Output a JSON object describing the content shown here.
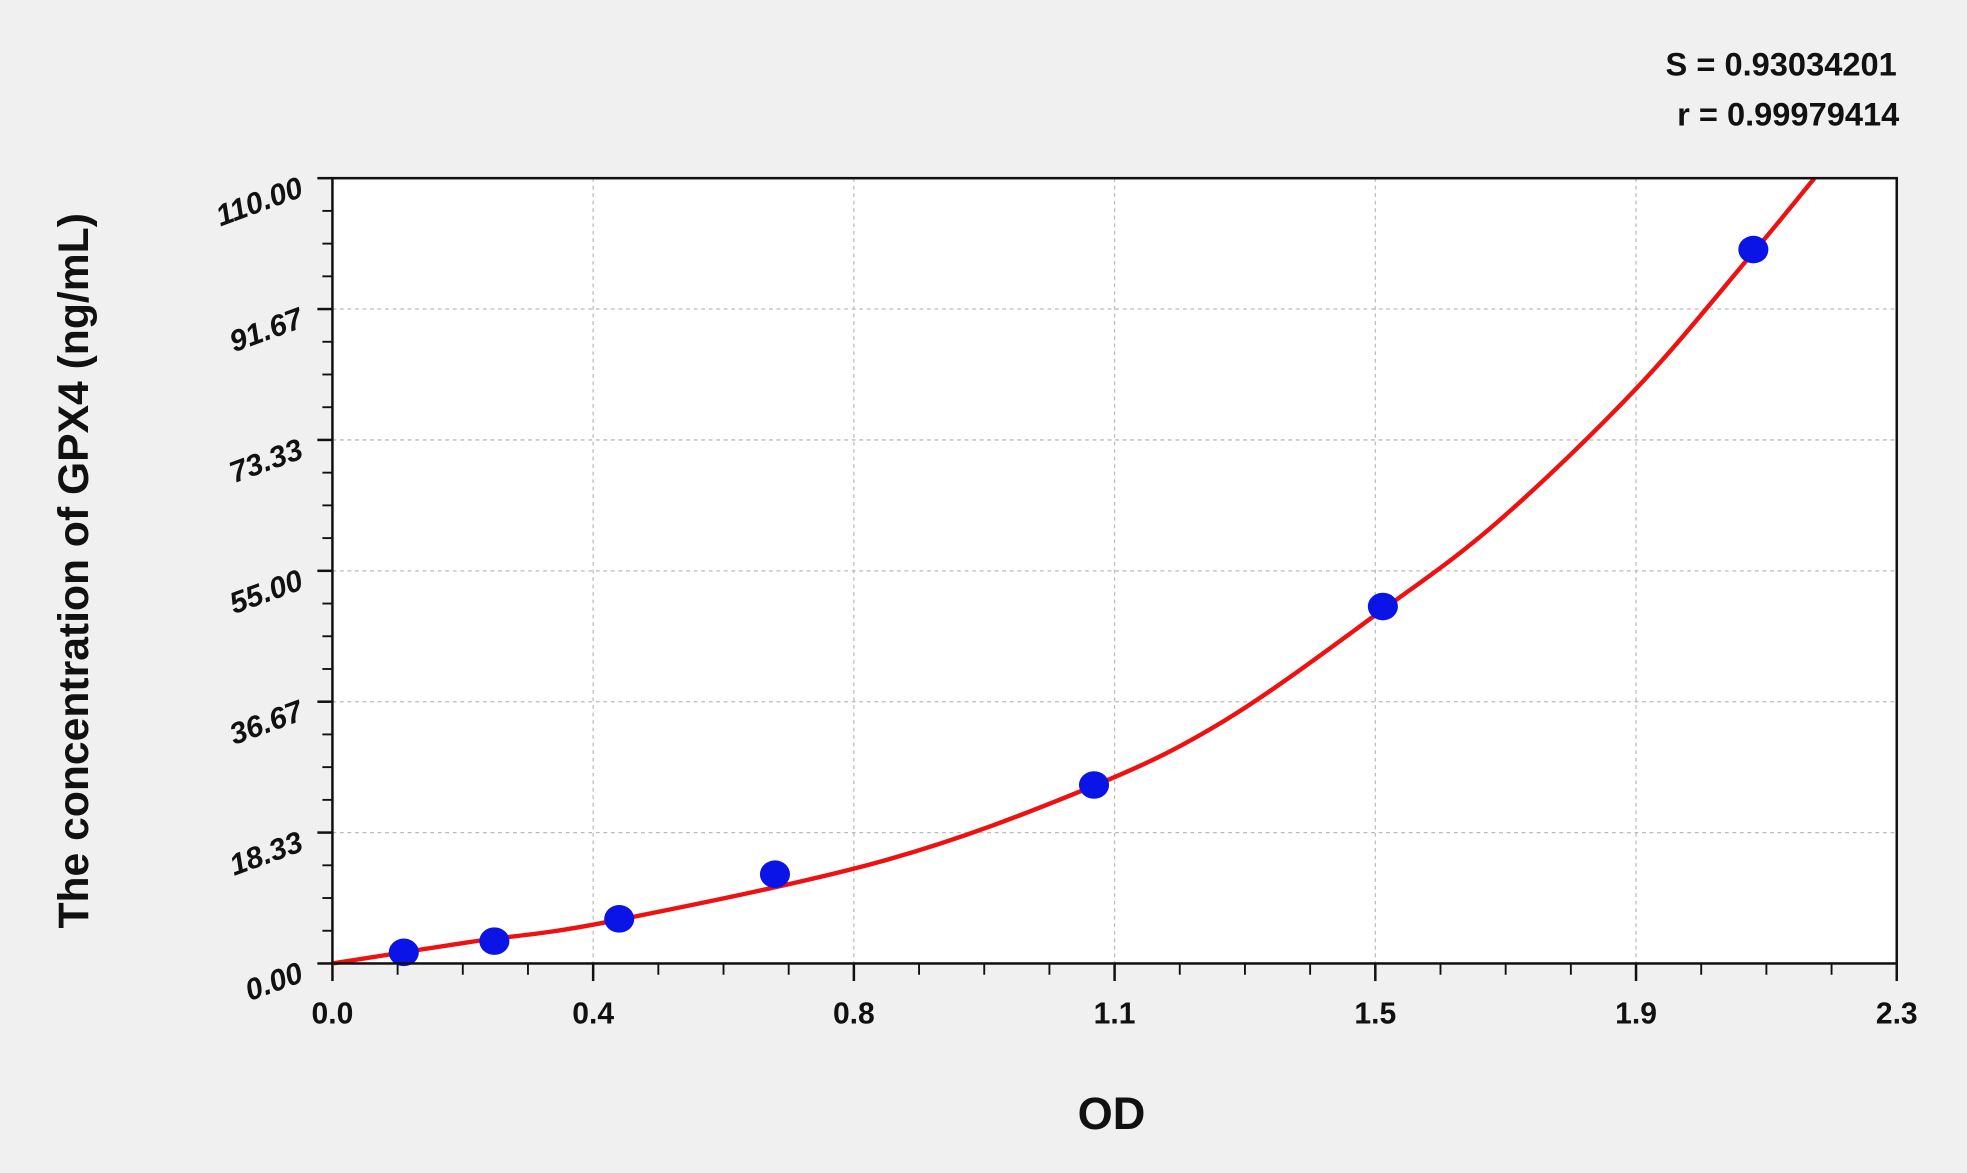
{
  "chart_data": {
    "type": "scatter",
    "xlabel": "OD",
    "ylabel": "The concentration of GPX4 (ng/mL)",
    "xlim": [
      0,
      2.28
    ],
    "ylim": [
      0,
      110
    ],
    "x_ticks": [
      "0.0",
      "0.4",
      "0.8",
      "1.1",
      "1.5",
      "1.9",
      "2.3"
    ],
    "y_ticks": [
      "0.00",
      "18.33",
      "36.67",
      "55.00",
      "73.33",
      "91.67",
      "110.00"
    ],
    "grid": true,
    "stats": [
      "S = 0.93034201",
      "r = 0.99979414"
    ],
    "series": [
      {
        "type": "scatter",
        "color": "#0a14e6",
        "points": [
          {
            "x": 0.104,
            "y": 1.56
          },
          {
            "x": 0.236,
            "y": 3.13
          },
          {
            "x": 0.418,
            "y": 6.25
          },
          {
            "x": 0.645,
            "y": 12.5
          },
          {
            "x": 1.11,
            "y": 25
          },
          {
            "x": 1.531,
            "y": 50
          },
          {
            "x": 2.071,
            "y": 100
          }
        ]
      },
      {
        "type": "line",
        "color": "#ee1111",
        "points": [
          {
            "x": 0.0,
            "y": 0
          },
          {
            "x": 0.2,
            "y": 3.0
          },
          {
            "x": 0.4,
            "y": 5.8
          },
          {
            "x": 0.8,
            "y": 14.3
          },
          {
            "x": 1.1,
            "y": 24.5
          },
          {
            "x": 1.3,
            "y": 34.0
          },
          {
            "x": 1.53,
            "y": 49.5
          },
          {
            "x": 1.7,
            "y": 62.0
          },
          {
            "x": 1.9,
            "y": 80.5
          },
          {
            "x": 2.07,
            "y": 99.5
          },
          {
            "x": 2.16,
            "y": 110
          }
        ]
      }
    ]
  }
}
